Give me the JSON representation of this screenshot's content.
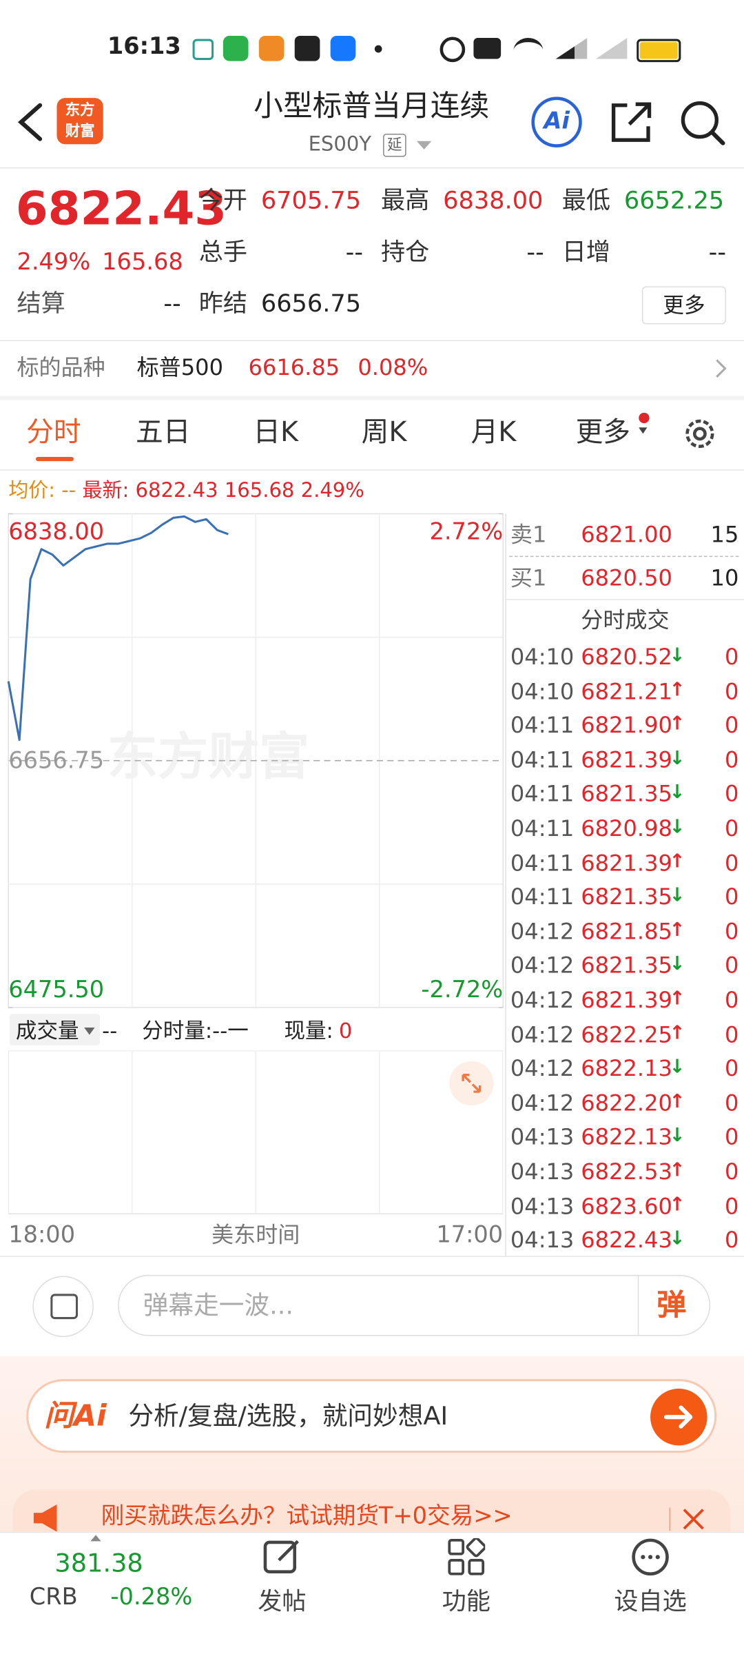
{
  "status_bar": {
    "time": "16:13"
  },
  "header": {
    "logo": [
      "东方",
      "财富"
    ],
    "title": "小型标普当月连续",
    "code": "ES00Y",
    "delay_tag": "延",
    "ai_button": "Ai"
  },
  "quote": {
    "price": "6822.43",
    "change_pct": "2.49%",
    "change": "165.68",
    "fields": [
      {
        "label": "今开",
        "value": "6705.75",
        "color": "#e0262a"
      },
      {
        "label": "最高",
        "value": "6838.00",
        "color": "#e0262a"
      },
      {
        "label": "最低",
        "value": "6652.25",
        "color": "#169a2f"
      },
      {
        "label": "总手",
        "value": "--",
        "color": "#222222"
      },
      {
        "label": "持仓",
        "value": "--",
        "color": "#222222"
      },
      {
        "label": "日增",
        "value": "--",
        "color": "#222222"
      },
      {
        "label": "结算",
        "value": "--",
        "color": "#222222"
      },
      {
        "label": "昨结",
        "value": "6656.75",
        "color": "#222222"
      }
    ],
    "more": "更多"
  },
  "underlying": {
    "label": "标的品种",
    "name": "标普500",
    "price": "6616.85",
    "change_pct": "0.08%"
  },
  "tabs": [
    "分时",
    "五日",
    "日K",
    "周K",
    "月K",
    "更多"
  ],
  "legend": {
    "avg_label": "均价:",
    "avg_value": "--",
    "latest_label": "最新:",
    "latest_price": "6822.43",
    "latest_change": "165.68",
    "latest_pct": "2.49%"
  },
  "intraday_chart": {
    "type": "line",
    "watermark": "东方财富",
    "color": "#3a70b4",
    "values": [
      6715,
      6672,
      6790,
      6812,
      6808,
      6800,
      6806,
      6812,
      6814,
      6816,
      6816,
      6818,
      6820,
      6824,
      6830,
      6835,
      6836,
      6832,
      6834,
      6826,
      6823,
      null,
      null,
      null,
      null,
      null,
      null,
      null,
      null,
      null,
      null,
      null,
      null,
      null,
      null,
      null,
      null,
      null,
      null,
      null,
      null,
      null,
      null,
      null,
      null,
      null
    ],
    "ylim": [
      6475.5,
      6838
    ],
    "yticks": [
      {
        "value": 6838,
        "label": "6838.00"
      },
      6656.75,
      {
        "value": 6475.5,
        "label": "6475.50"
      }
    ],
    "reference": 6656.75,
    "y2lim": [
      -2.72,
      2.72
    ],
    "y2ticks": [
      {
        "value": 2.72,
        "label": "2.72%"
      },
      {
        "value": -2.72,
        "label": "-2.72%"
      }
    ],
    "x_start": "18:00",
    "x_mid": "美东时间",
    "x_end": "17:00"
  },
  "volume_panel": {
    "selector": "成交量",
    "value": "--",
    "minute_volume": "分时量:--一",
    "current_label": "现量:",
    "current_value": "0"
  },
  "order_book": {
    "ask": {
      "label": "卖1",
      "price": "6821.00",
      "size": "15"
    },
    "bid": {
      "label": "买1",
      "price": "6820.50",
      "size": "10"
    }
  },
  "trades": {
    "title": "分时成交",
    "rows": [
      {
        "time": "04:10",
        "price": "6820.52",
        "arrow": "↓",
        "volume": "0"
      },
      {
        "time": "04:10",
        "price": "6821.21",
        "arrow": "↑",
        "volume": "0"
      },
      {
        "time": "04:11",
        "price": "6821.90",
        "arrow": "↑",
        "volume": "0"
      },
      {
        "time": "04:11",
        "price": "6821.39",
        "arrow": "↓",
        "volume": "0"
      },
      {
        "time": "04:11",
        "price": "6821.35",
        "arrow": "↓",
        "volume": "0"
      },
      {
        "time": "04:11",
        "price": "6820.98",
        "arrow": "↓",
        "volume": "0"
      },
      {
        "time": "04:11",
        "price": "6821.39",
        "arrow": "↑",
        "volume": "0"
      },
      {
        "time": "04:11",
        "price": "6821.35",
        "arrow": "↓",
        "volume": "0"
      },
      {
        "time": "04:12",
        "price": "6821.85",
        "arrow": "↑",
        "volume": "0"
      },
      {
        "time": "04:12",
        "price": "6821.35",
        "arrow": "↓",
        "volume": "0"
      },
      {
        "time": "04:12",
        "price": "6821.39",
        "arrow": "↑",
        "volume": "0"
      },
      {
        "time": "04:12",
        "price": "6822.25",
        "arrow": "↑",
        "volume": "0"
      },
      {
        "time": "04:12",
        "price": "6822.13",
        "arrow": "↓",
        "volume": "0"
      },
      {
        "time": "04:12",
        "price": "6822.20",
        "arrow": "↑",
        "volume": "0"
      },
      {
        "time": "04:13",
        "price": "6822.13",
        "arrow": "↓",
        "volume": "0"
      },
      {
        "time": "04:13",
        "price": "6822.53",
        "arrow": "↑",
        "volume": "0"
      },
      {
        "time": "04:13",
        "price": "6823.60",
        "arrow": "↑",
        "volume": "0"
      },
      {
        "time": "04:13",
        "price": "6822.43",
        "arrow": "↓",
        "volume": "0"
      }
    ]
  },
  "comment_bar": {
    "placeholder": "弹幕走一波...",
    "danmaku_button": "弹"
  },
  "ai_bar": {
    "logo": "问Ai",
    "prompt": "分析/复盘/选股，就问妙想AI"
  },
  "banner": {
    "text": "刚买就跌怎么办？试试期货T+0交易>>"
  },
  "bottom_nav": {
    "index": {
      "value": "381.38",
      "name": "CRB",
      "change_pct": "-0.28%"
    },
    "items": [
      "发帖",
      "功能",
      "设自选"
    ]
  }
}
